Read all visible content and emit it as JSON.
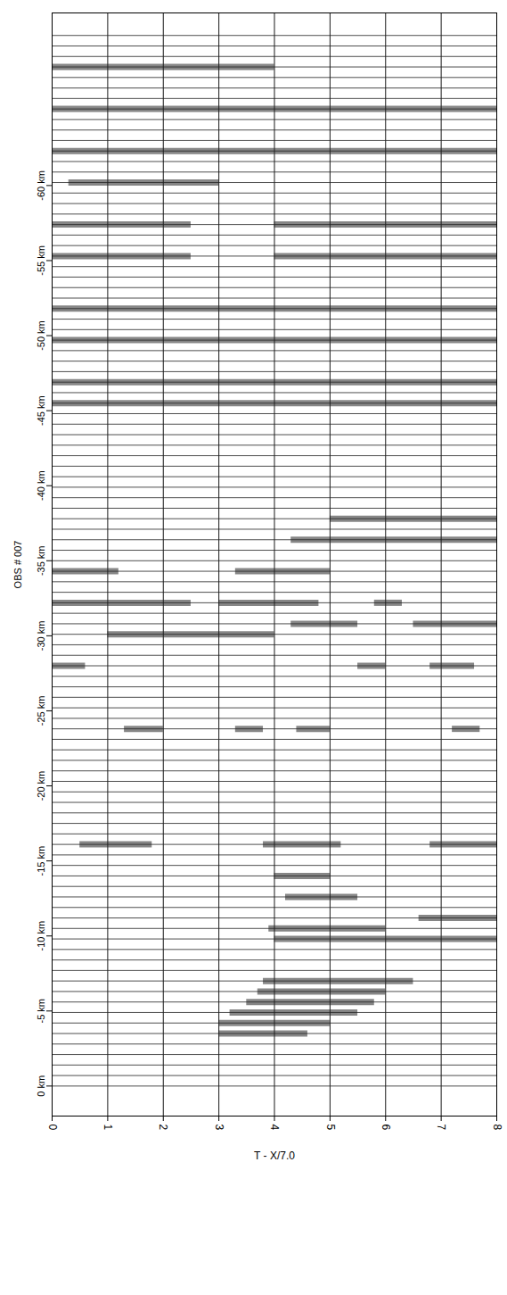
{
  "chart_data": {
    "type": "record_section",
    "y_label": "OBS # 007",
    "x_label": "T - X/7.0",
    "xlim": [
      0,
      8
    ],
    "xticks": [
      0,
      1,
      2,
      3,
      4,
      5,
      6,
      7,
      8
    ],
    "ylim": [
      -71.5,
      2
    ],
    "yticks": [
      {
        "value": 0,
        "label": "0 km"
      },
      {
        "value": -5,
        "label": "-5 km"
      },
      {
        "value": -10,
        "label": "-10 km"
      },
      {
        "value": -15,
        "label": "-15 km"
      },
      {
        "value": -20,
        "label": "-20 km"
      },
      {
        "value": -25,
        "label": "-25 km"
      },
      {
        "value": -30,
        "label": "-30 km"
      },
      {
        "value": -35,
        "label": "-35 km"
      },
      {
        "value": -40,
        "label": "-40 km"
      },
      {
        "value": -45,
        "label": "-45 km"
      },
      {
        "value": -50,
        "label": "-50 km"
      },
      {
        "value": -55,
        "label": "-55 km"
      },
      {
        "value": -60,
        "label": "-60 km"
      }
    ],
    "grid": true,
    "color": "#222222",
    "traces": [
      0,
      -0.7,
      -1.4,
      -2.1,
      -2.8,
      -3.5,
      -4.2,
      -4.9,
      -5.6,
      -6.3,
      -7,
      -7.7,
      -8.4,
      -9.1,
      -9.8,
      -10.5,
      -11.2,
      -11.9,
      -12.6,
      -13.3,
      -14,
      -14.7,
      -15.4,
      -16.1,
      -16.8,
      -17.5,
      -18.2,
      -18.9,
      -19.6,
      -20.3,
      -21,
      -21.7,
      -22.4,
      -23.1,
      -23.8,
      -24.5,
      -25.2,
      -25.9,
      -26.6,
      -27.3,
      -28,
      -28.7,
      -29.4,
      -30.1,
      -30.8,
      -31.5,
      -32.2,
      -32.9,
      -33.6,
      -34.3,
      -35,
      -35.7,
      -36.4,
      -37.1,
      -37.8,
      -38.5,
      -39.2,
      -39.9,
      -40.6,
      -41.3,
      -42,
      -42.7,
      -43.4,
      -44.1,
      -44.8,
      -45.5,
      -46.2,
      -46.9,
      -47.6,
      -48.3,
      -49,
      -49.7,
      -50.4,
      -51.1,
      -51.8,
      -52.5,
      -53.2,
      -53.9,
      -54.6,
      -55.3,
      -56,
      -56.7,
      -57.4,
      -58.1,
      -58.8,
      -59.5,
      -60.2,
      -60.9,
      -61.6,
      -62.3,
      -63,
      -63.7,
      -64.4,
      -65.1,
      -65.8,
      -66.5,
      -67.2,
      -67.9,
      -68.6,
      -69.3,
      -70
    ],
    "packets": [
      {
        "distance": -3.5,
        "start": 3.0,
        "end": 4.6
      },
      {
        "distance": -4.2,
        "start": 3.0,
        "end": 5.0
      },
      {
        "distance": -4.9,
        "start": 3.2,
        "end": 5.5
      },
      {
        "distance": -5.6,
        "start": 3.5,
        "end": 5.8
      },
      {
        "distance": -6.3,
        "start": 3.7,
        "end": 6.0
      },
      {
        "distance": -7.0,
        "start": 3.8,
        "end": 6.5
      },
      {
        "distance": -9.8,
        "start": 4.0,
        "end": 8.0
      },
      {
        "distance": -10.5,
        "start": 3.9,
        "end": 6.0
      },
      {
        "distance": -11.2,
        "start": 6.6,
        "end": 8.0
      },
      {
        "distance": -12.6,
        "start": 4.2,
        "end": 5.5
      },
      {
        "distance": -14.0,
        "start": 4.0,
        "end": 5.0
      },
      {
        "distance": -16.1,
        "start": 0.5,
        "end": 1.8
      },
      {
        "distance": -16.1,
        "start": 3.8,
        "end": 5.2
      },
      {
        "distance": -16.1,
        "start": 6.8,
        "end": 8.0
      },
      {
        "distance": -23.8,
        "start": 1.3,
        "end": 2.0
      },
      {
        "distance": -23.8,
        "start": 3.3,
        "end": 3.8
      },
      {
        "distance": -23.8,
        "start": 4.4,
        "end": 5.0
      },
      {
        "distance": -23.8,
        "start": 7.2,
        "end": 7.7
      },
      {
        "distance": -28.0,
        "start": 0.0,
        "end": 0.6
      },
      {
        "distance": -28.0,
        "start": 5.5,
        "end": 6.0
      },
      {
        "distance": -28.0,
        "start": 6.8,
        "end": 7.6
      },
      {
        "distance": -30.1,
        "start": 1.0,
        "end": 4.0
      },
      {
        "distance": -30.8,
        "start": 4.3,
        "end": 5.5
      },
      {
        "distance": -30.8,
        "start": 6.5,
        "end": 8.0
      },
      {
        "distance": -32.2,
        "start": 0.0,
        "end": 2.5
      },
      {
        "distance": -32.2,
        "start": 3.0,
        "end": 4.8
      },
      {
        "distance": -32.2,
        "start": 5.8,
        "end": 6.3
      },
      {
        "distance": -34.3,
        "start": 0.0,
        "end": 1.2
      },
      {
        "distance": -34.3,
        "start": 3.3,
        "end": 5.0
      },
      {
        "distance": -36.4,
        "start": 4.3,
        "end": 8.0
      },
      {
        "distance": -37.8,
        "start": 5.0,
        "end": 8.0
      },
      {
        "distance": -45.5,
        "start": 0.0,
        "end": 8.0
      },
      {
        "distance": -46.9,
        "start": 0.0,
        "end": 8.0
      },
      {
        "distance": -49.7,
        "start": 0.0,
        "end": 8.0
      },
      {
        "distance": -51.8,
        "start": 0.0,
        "end": 8.0
      },
      {
        "distance": -55.3,
        "start": 0.0,
        "end": 2.5
      },
      {
        "distance": -55.3,
        "start": 4.0,
        "end": 8.0
      },
      {
        "distance": -57.4,
        "start": 0.0,
        "end": 2.5
      },
      {
        "distance": -57.4,
        "start": 4.0,
        "end": 8.0
      },
      {
        "distance": -60.2,
        "start": 0.3,
        "end": 3.0
      },
      {
        "distance": -62.3,
        "start": 0.0,
        "end": 8.0
      },
      {
        "distance": -65.1,
        "start": 0.0,
        "end": 8.0
      },
      {
        "distance": -67.9,
        "start": 0.0,
        "end": 4.0
      }
    ]
  }
}
